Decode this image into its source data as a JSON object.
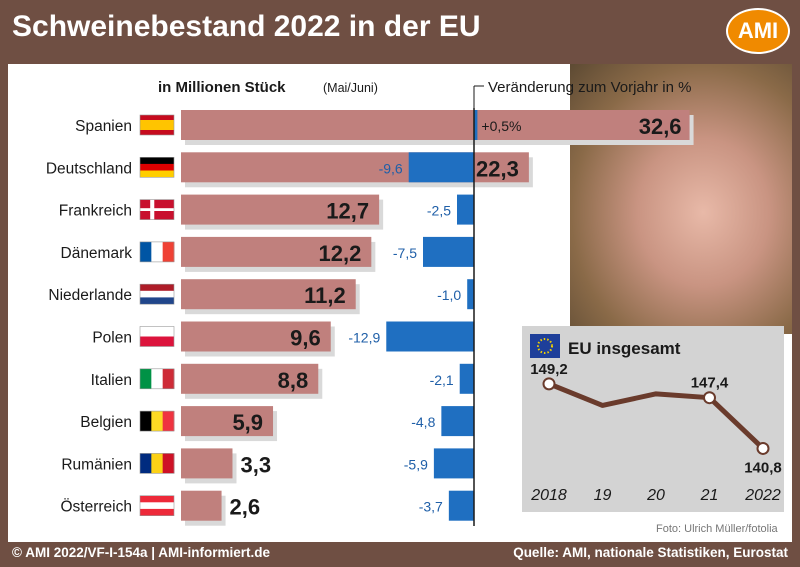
{
  "title": "Schweinebestand 2022 in der EU",
  "logo": "AMI",
  "footer": {
    "left": "© AMI 2022/VF-I-154a | AMI-informiert.de",
    "right": "Quelle: AMI, nationale Statistiken, Eurostat"
  },
  "photo_credit": "Foto: Ulrich Müller/fotolia",
  "colors": {
    "bar": "#c0807d",
    "shadow": "#d9d9d9",
    "change": "#1f6fc1",
    "eu_line": "#6a3b2c",
    "eu_box": "#d3d3d3",
    "frame": "#6f4f43"
  },
  "chart_data": [
    {
      "type": "bar",
      "title": "",
      "unit_label": "in Millionen Stück",
      "unit_sub": "(Mai/Juni)",
      "change_label": "Veränderung zum Vorjahr in %",
      "categories": [
        "Spanien",
        "Deutschland",
        "Frankreich",
        "Dänemark",
        "Niederlande",
        "Polen",
        "Italien",
        "Belgien",
        "Rumänien",
        "Österreich"
      ],
      "flag_icons": [
        "flag-es-icon",
        "flag-de-icon",
        "flag-dk-icon",
        "flag-fr-icon",
        "flag-nl-icon",
        "flag-pl-icon",
        "flag-it-icon",
        "flag-be-icon",
        "flag-ro-icon",
        "flag-at-icon"
      ],
      "series": [
        {
          "values": [
            32.6,
            22.3,
            12.7,
            12.2,
            11.2,
            9.6,
            8.8,
            5.9,
            3.3,
            2.6
          ],
          "labels": [
            "32,6",
            "22,3",
            "12,7",
            "12,2",
            "11,2",
            "9,6",
            "8,8",
            "5,9",
            "3,3",
            "2,6"
          ]
        },
        {
          "values": [
            0.5,
            -9.6,
            -2.5,
            -7.5,
            -1.0,
            -12.9,
            -2.1,
            -4.8,
            -5.9,
            -3.7
          ],
          "labels": [
            "+0,5%",
            "-9,6",
            "-2,5",
            "-7,5",
            "-1,0",
            "-12,9",
            "-2,1",
            "-4,8",
            "-5,9",
            "-3,7"
          ]
        }
      ]
    },
    {
      "type": "line",
      "title": "EU insgesamt",
      "x": [
        "2018",
        "19",
        "20",
        "21",
        "2022"
      ],
      "values": [
        149.2,
        146.4,
        147.9,
        147.4,
        140.8
      ],
      "point_labels": [
        "149,2",
        "",
        "",
        "147,4",
        "140,8"
      ],
      "marked_points": [
        true,
        false,
        false,
        true,
        true
      ],
      "ylim": [
        138,
        151
      ]
    }
  ]
}
